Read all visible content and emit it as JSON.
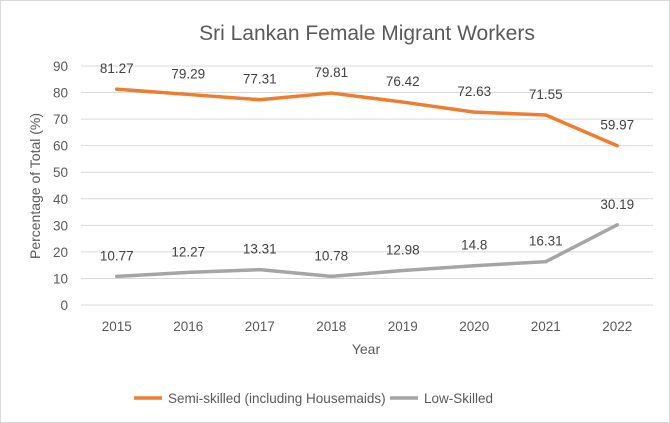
{
  "chart_data": {
    "type": "line",
    "title": "Sri Lankan Female Migrant Workers",
    "xlabel": "Year",
    "ylabel": "Percentage of Total (%)",
    "ylim": [
      0,
      90
    ],
    "yticks": [
      0,
      10,
      20,
      30,
      40,
      50,
      60,
      70,
      80,
      90
    ],
    "categories": [
      "2015",
      "2016",
      "2017",
      "2018",
      "2019",
      "2020",
      "2021",
      "2022"
    ],
    "grid": "horizontal",
    "legend_position": "bottom",
    "series": [
      {
        "name": "Semi-skilled (including Housemaids)",
        "color": "#ED7D31",
        "values": [
          81.27,
          79.29,
          77.31,
          79.81,
          76.42,
          72.63,
          71.55,
          59.97
        ]
      },
      {
        "name": "Low-Skilled",
        "color": "#A5A5A5",
        "values": [
          10.77,
          12.27,
          13.31,
          10.78,
          12.98,
          14.8,
          16.31,
          30.19
        ]
      }
    ]
  }
}
